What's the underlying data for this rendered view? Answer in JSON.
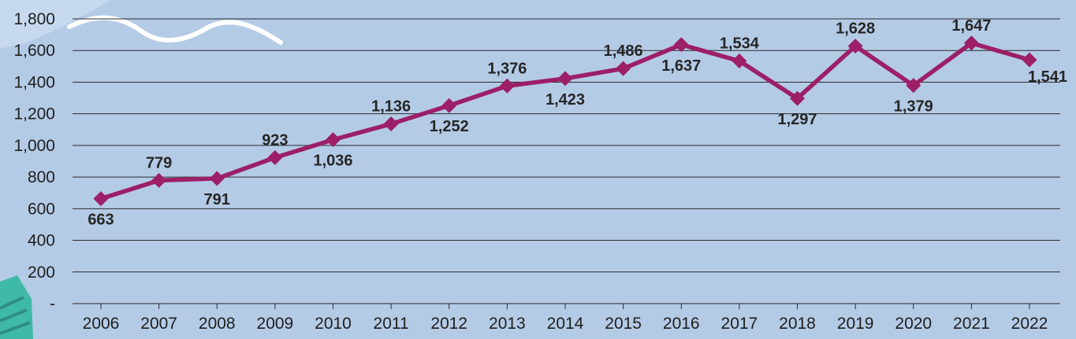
{
  "colors": {
    "background": "#b4cbe6",
    "series": "#9c1f67",
    "grid": "#2a2a2a",
    "decoration_teal": "#3fb9a8",
    "decoration_wave": "#ffffff"
  },
  "chart_data": {
    "type": "line",
    "title": "",
    "xlabel": "",
    "ylabel": "",
    "ylim": [
      0,
      1800
    ],
    "grid": true,
    "y_ticks": [
      "-",
      "200",
      "400",
      "600",
      "800",
      "1,000",
      "1,200",
      "1,400",
      "1,600",
      "1,800"
    ],
    "categories": [
      "2006",
      "2007",
      "2008",
      "2009",
      "2010",
      "2011",
      "2012",
      "2013",
      "2014",
      "2015",
      "2016",
      "2017",
      "2018",
      "2019",
      "2020",
      "2021",
      "2022"
    ],
    "series": [
      {
        "values": [
          663,
          779,
          791,
          923,
          1036,
          1136,
          1252,
          1376,
          1423,
          1486,
          1637,
          1534,
          1297,
          1628,
          1379,
          1647,
          1541
        ],
        "labels": [
          "663",
          "779",
          "791",
          "923",
          "1,036",
          "1,136",
          "1,252",
          "1,376",
          "1,423",
          "1,486",
          "1,637",
          "1,534",
          "1,297",
          "1,628",
          "1,379",
          "1,647",
          "1,541"
        ],
        "label_positions": [
          "below",
          "above",
          "below",
          "above",
          "below",
          "above",
          "below",
          "above",
          "below",
          "above",
          "below",
          "above",
          "below",
          "above",
          "below",
          "above",
          "below"
        ]
      }
    ]
  }
}
